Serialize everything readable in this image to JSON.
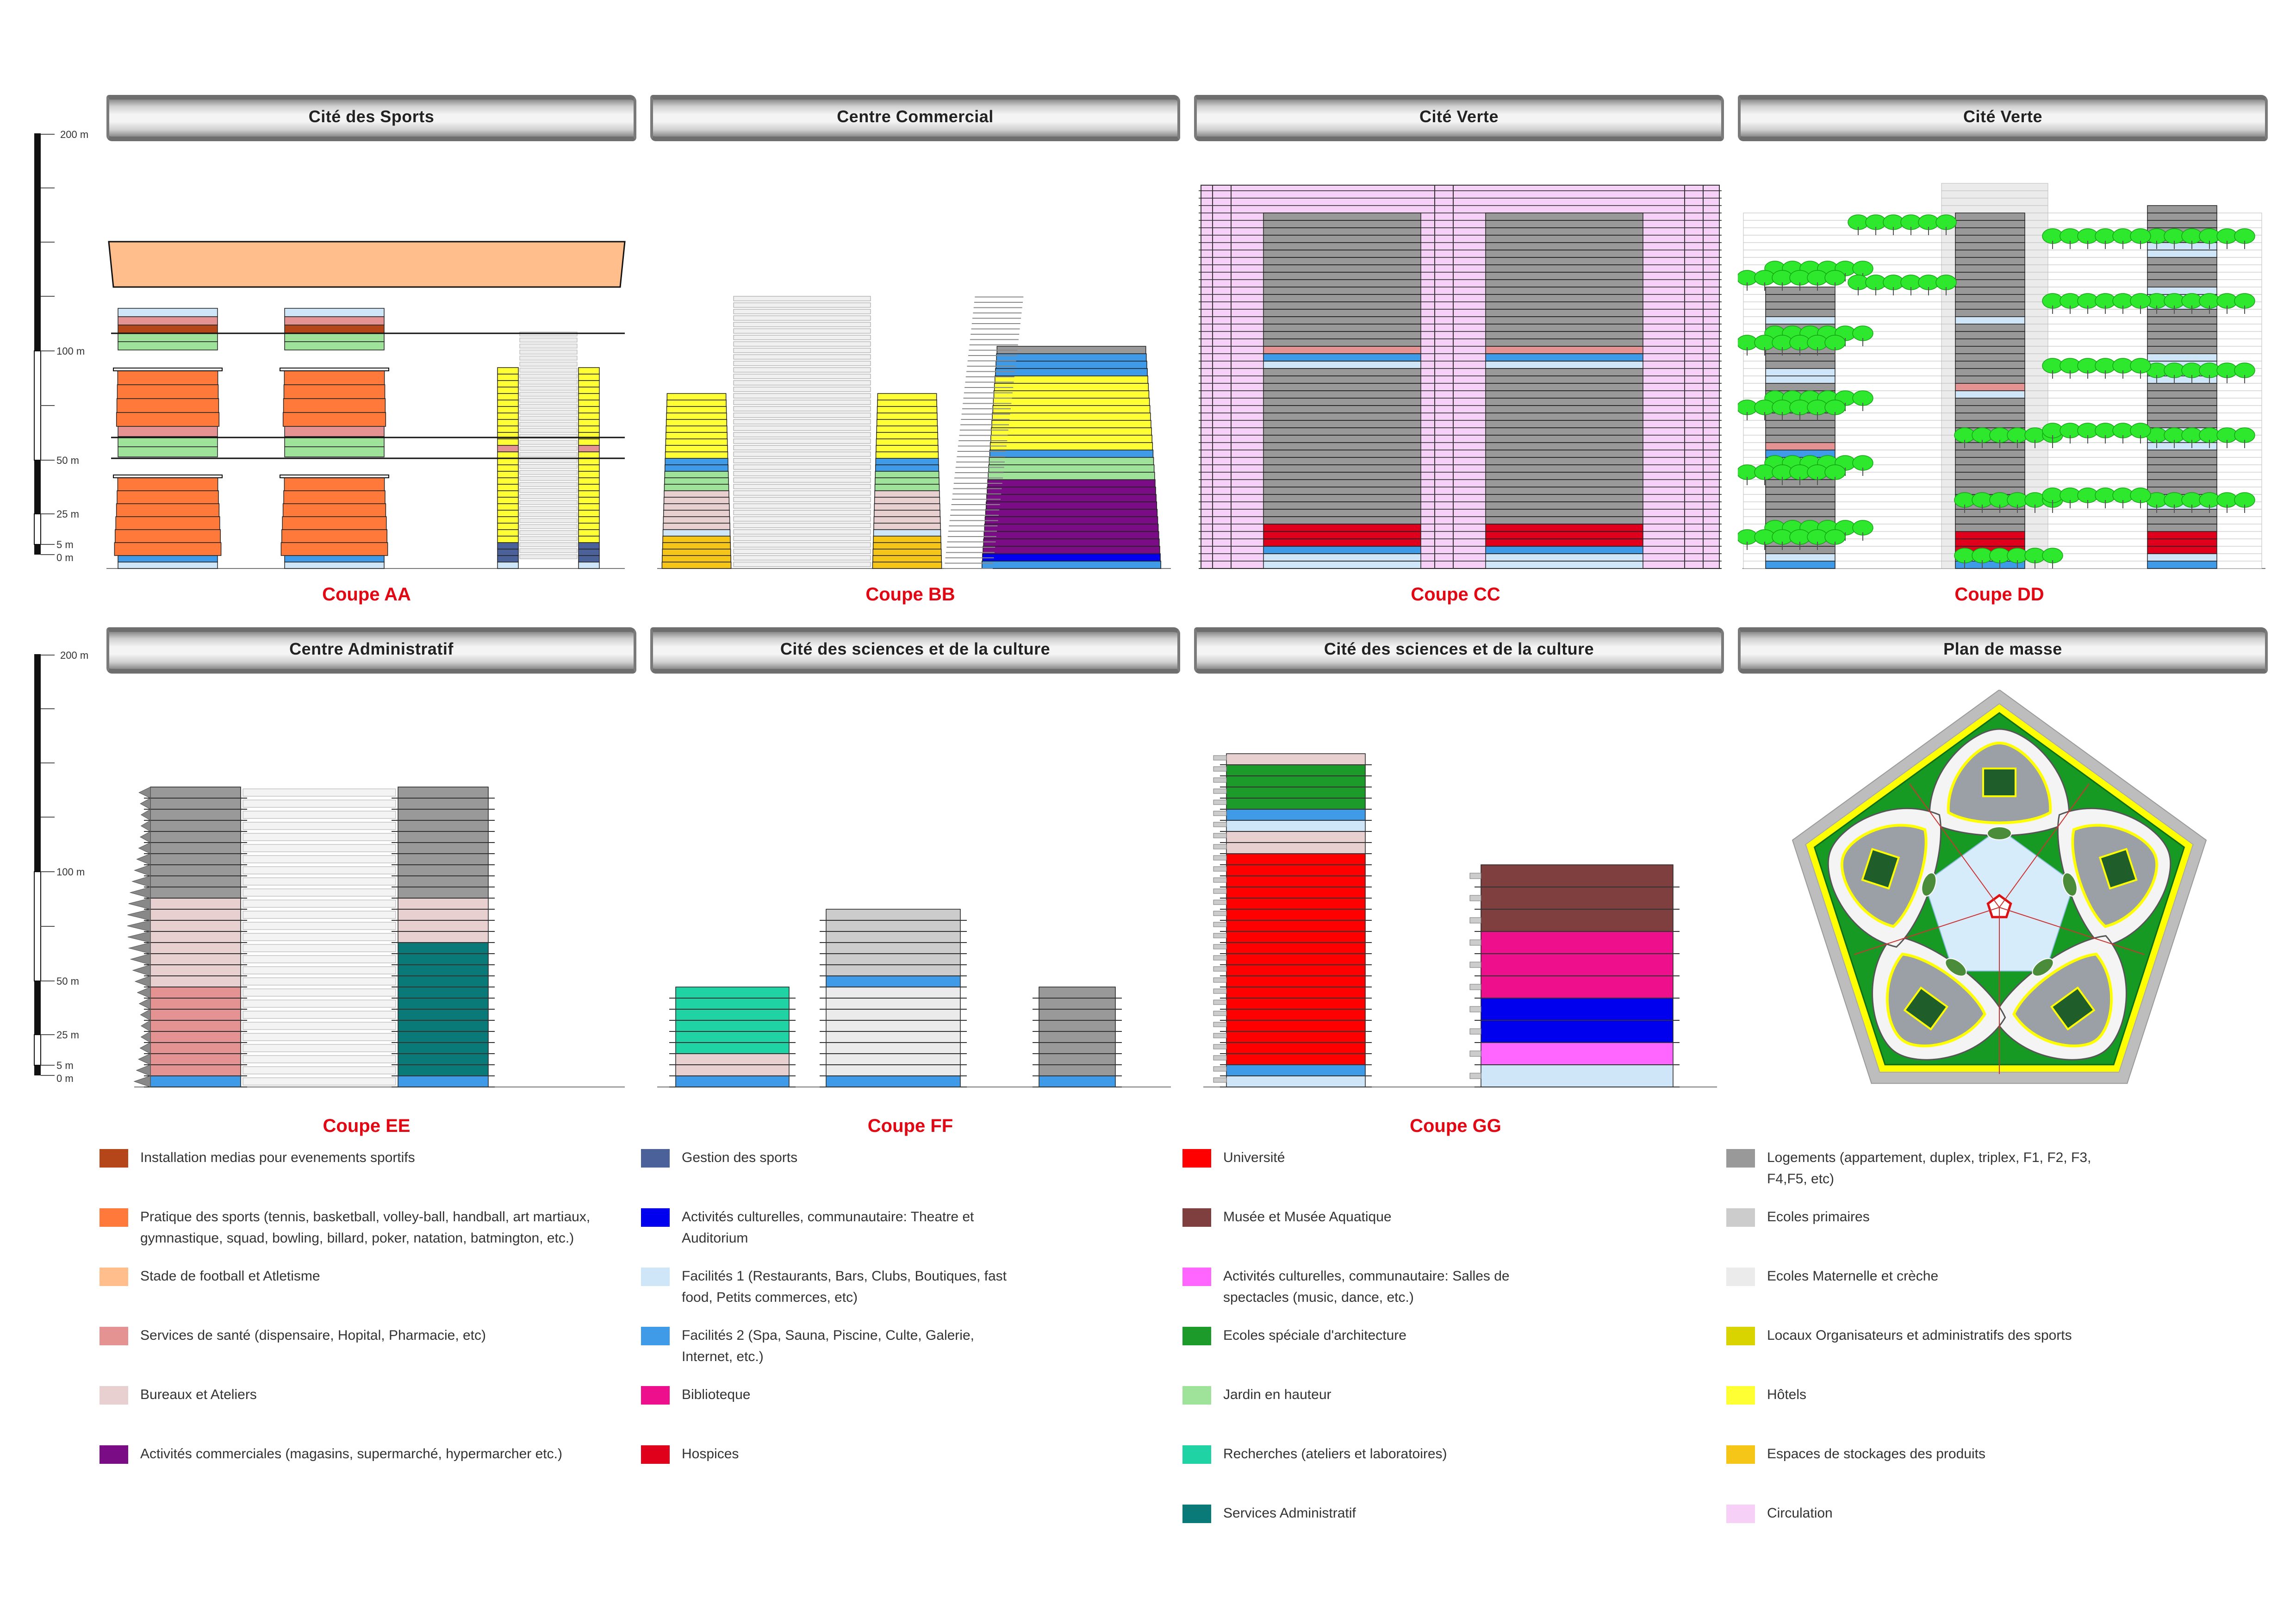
{
  "banners": [
    {
      "title": "Cité des Sports"
    },
    {
      "title": "Centre Commercial"
    },
    {
      "title": "Cité Verte"
    },
    {
      "title": "Cité Verte"
    },
    {
      "title": "Centre Administratif"
    },
    {
      "title": "Cité des sciences et de la culture"
    },
    {
      "title": "Cité des sciences et de la culture"
    },
    {
      "title": "Plan de masse"
    }
  ],
  "sections": [
    {
      "label": "Coupe AA"
    },
    {
      "label": "Coupe BB"
    },
    {
      "label": "Coupe CC"
    },
    {
      "label": "Coupe DD"
    },
    {
      "label": "Coupe EE"
    },
    {
      "label": "Coupe FF"
    },
    {
      "label": "Coupe GG"
    }
  ],
  "scale": {
    "labels": [
      "200 m",
      "100 m",
      "50 m",
      "25 m",
      "5 m",
      "0 m"
    ],
    "values": [
      200,
      100,
      50,
      25,
      5,
      0
    ]
  },
  "legend": [
    {
      "label": "Installation medias pour evenements sportifs",
      "color": "#b5461a"
    },
    {
      "label": "Pratique des sports (tennis, basketball, volley-ball, handball, art martiaux, gymnastique, squad, bowling, billard, poker, natation, batmington, etc.)",
      "color": "#ff7a3a"
    },
    {
      "label": "Stade de football et Atletisme",
      "color": "#ffbe8c"
    },
    {
      "label": "Services de santé (dispensaire, Hopital, Pharmacie, etc)",
      "color": "#e59292"
    },
    {
      "label": "Bureaux et Ateliers",
      "color": "#e8d0d0"
    },
    {
      "label": "Activités commerciales (magasins, supermarché, hypermarcher etc.)",
      "color": "#7a0d85"
    },
    {
      "label": "Gestion des sports",
      "color": "#4a6299"
    },
    {
      "label": "Activités culturelles, communautaire: Theatre et Auditorium",
      "color": "#0000ee"
    },
    {
      "label": "Facilités 1 (Restaurants, Bars, Clubs, Boutiques, fast food, Petits commerces, etc)",
      "color": "#cfe6f8"
    },
    {
      "label": "Facilités 2 (Spa, Sauna, Piscine, Culte, Galerie, Internet, etc.)",
      "color": "#3f9be8"
    },
    {
      "label": "Biblioteque",
      "color": "#ee0f8c"
    },
    {
      "label": "Hospices",
      "color": "#e0001b"
    },
    {
      "label": "Université",
      "color": "#ff0000"
    },
    {
      "label": "Musée et Musée Aquatique",
      "color": "#7f3f3f"
    },
    {
      "label": "Activités culturelles, communautaire: Salles de spectacles (music, dance, etc.)",
      "color": "#ff66ff"
    },
    {
      "label": "Ecoles spéciale d'architecture",
      "color": "#1c9b2b"
    },
    {
      "label": "Jardin en hauteur",
      "color": "#9fe29a"
    },
    {
      "label": "Recherches (ateliers et laboratoires)",
      "color": "#1fd3a4"
    },
    {
      "label": "Services Administratif",
      "color": "#0a7a78"
    },
    {
      "label": "Logements (appartement, duplex, triplex, F1, F2, F3, F4,F5, etc)",
      "color": "#999999"
    },
    {
      "label": "Ecoles primaires",
      "color": "#cccccc"
    },
    {
      "label": "Ecoles Maternelle et crèche",
      "color": "#ebebeb"
    },
    {
      "label": "Locaux Organisateurs et administratifs des sports",
      "color": "#d9d400"
    },
    {
      "label": "Hôtels",
      "color": "#ffff33"
    },
    {
      "label": "Espaces de stockages des produits",
      "color": "#f5c518"
    },
    {
      "label": "Circulation",
      "color": "#f6d0f6"
    }
  ],
  "colors": {
    "sectionLabel": "#e30613",
    "outline": "#111111",
    "planGreen": "#169a23",
    "planBorder": "#bdbdbd",
    "planYellow": "#ffff00"
  }
}
